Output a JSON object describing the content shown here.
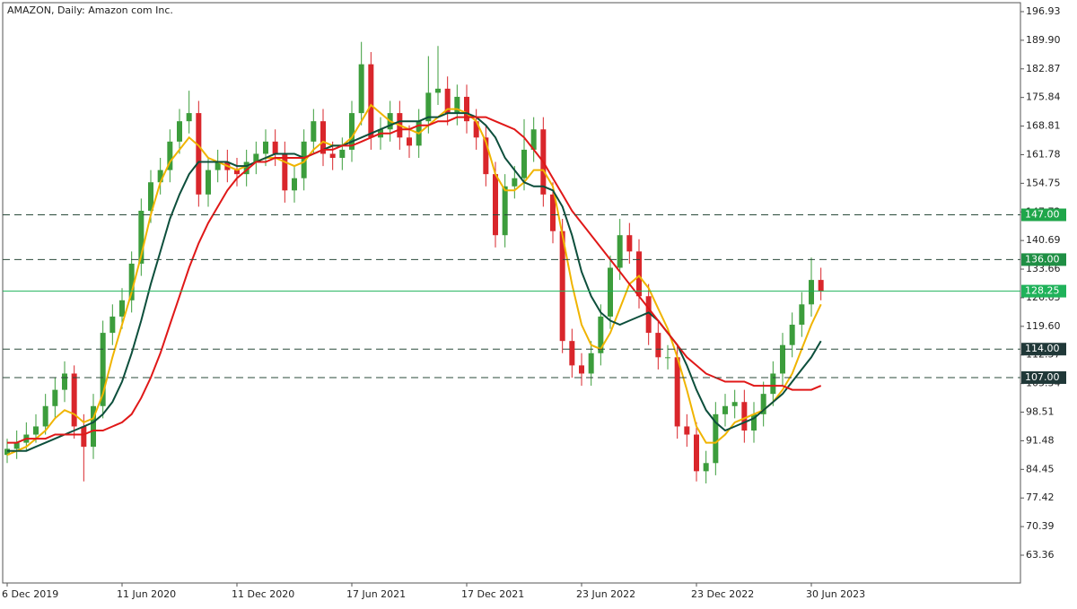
{
  "chart_data": {
    "type": "candlestick",
    "title": "AMAZON, Daily:  Amazon com Inc.",
    "categories": [
      "6 Dec 2019",
      null,
      null,
      null,
      null,
      null,
      null,
      null,
      null,
      null,
      null,
      null,
      "11 Jun 2020",
      null,
      null,
      null,
      null,
      null,
      null,
      null,
      null,
      null,
      null,
      null,
      "11 Dec 2020",
      null,
      null,
      null,
      null,
      null,
      null,
      null,
      null,
      null,
      null,
      null,
      "17 Jun 2021",
      null,
      null,
      null,
      null,
      null,
      null,
      null,
      null,
      null,
      null,
      null,
      "17 Dec 2021",
      null,
      null,
      null,
      null,
      null,
      null,
      null,
      null,
      null,
      null,
      null,
      "23 Jun 2022",
      null,
      null,
      null,
      null,
      null,
      null,
      null,
      null,
      null,
      null,
      null,
      "23 Dec 2022",
      null,
      null,
      null,
      null,
      null,
      null,
      null,
      null,
      null,
      null,
      null,
      "30 Jun 2023",
      null
    ],
    "open": [
      88,
      89.5,
      91,
      93,
      95,
      100,
      104,
      108,
      95,
      90,
      100,
      118,
      122,
      126,
      135,
      148,
      155,
      158,
      165,
      170,
      172,
      152,
      158,
      160,
      158,
      157,
      160,
      162,
      165,
      162,
      153,
      156,
      165,
      170,
      162,
      161,
      163,
      172,
      184,
      166,
      168,
      172,
      166,
      164,
      170,
      177,
      178,
      172,
      176,
      170,
      166,
      157,
      142,
      154,
      156,
      163,
      168,
      152,
      143,
      116,
      110,
      108,
      113,
      122,
      134,
      142,
      138,
      127,
      118,
      112,
      112,
      95,
      93,
      84,
      86,
      98,
      100,
      101,
      94,
      98,
      103,
      108,
      115,
      120,
      125,
      131
    ],
    "high": [
      92,
      94,
      96,
      98,
      103,
      107,
      111,
      110,
      98,
      103,
      121,
      125,
      129,
      138,
      151,
      158,
      161,
      168,
      173,
      177.5,
      175,
      161,
      163,
      163,
      161,
      163,
      165,
      168,
      168,
      165,
      159,
      168,
      173,
      173,
      165,
      166,
      175,
      189.5,
      187,
      171,
      175,
      175,
      169,
      173,
      186,
      188.5,
      181,
      179,
      179,
      173,
      169,
      160,
      157,
      159,
      170.5,
      171,
      171,
      155,
      146,
      119,
      113,
      116,
      125,
      137,
      146,
      145,
      141,
      130,
      121,
      115,
      115,
      98,
      96,
      89,
      101,
      103,
      104,
      104,
      101,
      106,
      111,
      118,
      123,
      128,
      136.5,
      134
    ],
    "low": [
      86,
      87,
      89,
      91,
      93,
      97,
      101,
      92,
      81.5,
      87,
      97,
      115,
      119,
      123,
      132,
      145,
      152,
      155,
      162,
      167,
      149,
      149,
      155,
      155,
      154,
      154,
      157,
      159,
      159,
      150,
      150,
      153,
      162,
      159,
      158,
      158,
      160,
      169,
      163,
      163,
      165,
      163,
      161,
      161,
      167,
      174,
      169,
      169,
      167,
      163,
      154,
      139,
      139,
      151,
      153,
      160,
      149,
      140,
      113,
      107,
      105,
      105,
      110,
      119,
      131,
      135,
      124,
      115,
      109,
      109,
      92,
      90,
      81.5,
      81,
      83,
      95,
      97,
      91,
      91,
      95,
      100,
      105,
      112,
      117,
      122,
      126
    ],
    "close": [
      89.5,
      91,
      93,
      95,
      100,
      104,
      108,
      95,
      90,
      100,
      118,
      122,
      126,
      135,
      148,
      155,
      158,
      165,
      170,
      172,
      152,
      158,
      160,
      158,
      157,
      160,
      162,
      165,
      162,
      153,
      156,
      165,
      170,
      162,
      161,
      163,
      172,
      184,
      166,
      168,
      172,
      166,
      164,
      170,
      177,
      178,
      172,
      176,
      170,
      166,
      157,
      142,
      154,
      156,
      163,
      168,
      152,
      143,
      116,
      110,
      108,
      113,
      122,
      134,
      142,
      138,
      127,
      118,
      112,
      112,
      95,
      93,
      84,
      86,
      98,
      100,
      101,
      94,
      98,
      103,
      108,
      115,
      120,
      125,
      131,
      128.25
    ],
    "up_color": "#3c9d3c",
    "down_color": "#d9262b",
    "series": [
      {
        "color": "#f0b400",
        "values": [
          88,
          89,
          90,
          92,
          94,
          97,
          99,
          98,
          96,
          97,
          103,
          112,
          120,
          128,
          137,
          147,
          155,
          160,
          163,
          166,
          164,
          161,
          160,
          159,
          158,
          159,
          160,
          161,
          161,
          160,
          159,
          160,
          163,
          165,
          164,
          164,
          166,
          170,
          174,
          172,
          170,
          169,
          168,
          167,
          169,
          171,
          173,
          173,
          172,
          170,
          165,
          157,
          153,
          153,
          155,
          158,
          158,
          154,
          142,
          130,
          120,
          115,
          114,
          118,
          124,
          130,
          132,
          129,
          124,
          119,
          112,
          104,
          95,
          91,
          91,
          93,
          96,
          97,
          98,
          99,
          101,
          104,
          108,
          114,
          120,
          125
        ]
      },
      {
        "color": "#0d4f3c",
        "values": [
          89,
          89,
          89,
          90,
          91,
          92,
          93,
          94,
          95,
          96,
          98,
          101,
          106,
          113,
          121,
          130,
          138,
          146,
          152,
          157,
          160,
          160,
          160,
          160,
          159,
          159,
          160,
          161,
          162,
          162,
          162,
          161,
          162,
          163,
          164,
          164,
          165,
          166,
          167,
          168,
          169,
          170,
          170,
          170,
          171,
          171,
          172,
          172,
          172,
          171,
          169,
          166,
          161,
          158,
          155,
          154,
          154,
          153,
          149,
          142,
          133,
          127,
          123,
          121,
          120,
          121,
          122,
          123,
          121,
          118,
          115,
          110,
          104,
          99,
          96,
          94,
          95,
          96,
          97,
          99,
          101,
          103,
          106,
          109,
          112,
          116
        ]
      },
      {
        "color": "#e01818",
        "values": [
          91,
          91,
          92,
          92,
          92,
          93,
          93,
          93,
          93,
          94,
          94,
          95,
          96,
          98,
          102,
          107,
          113,
          120,
          127,
          134,
          140,
          145,
          149,
          153,
          156,
          158,
          160,
          160,
          161,
          161,
          161,
          161,
          162,
          163,
          163,
          164,
          164,
          165,
          166,
          167,
          167,
          168,
          168,
          169,
          169,
          170,
          170,
          171,
          171,
          171,
          171,
          170,
          169,
          168,
          166,
          163,
          160,
          156,
          152,
          148,
          145,
          142,
          139,
          136,
          133,
          130,
          127,
          124,
          121,
          118,
          115,
          112,
          110,
          108,
          107,
          106,
          106,
          106,
          105,
          105,
          105,
          105,
          104,
          104,
          104,
          105
        ]
      }
    ],
    "ylim": [
      56.53,
      199.13
    ],
    "yticks": [
      63.36,
      70.39,
      77.42,
      84.45,
      91.48,
      98.51,
      105.54,
      112.57,
      {
        "value": 119.6,
        "label": "119.60"
      },
      126.63,
      133.66,
      140.69,
      147.72,
      154.75,
      161.78,
      168.81,
      175.84,
      182.87,
      {
        "value": 189.9,
        "label": "189.90"
      },
      196.93
    ],
    "levels": [
      {
        "value": 147,
        "label": "147.00"
      },
      {
        "value": 136,
        "label": "136.00"
      },
      {
        "value": 114,
        "label": "114.00"
      },
      {
        "value": 107,
        "label": "107.00"
      }
    ],
    "level_colors": [
      "#1fa64a",
      "#1f8f44",
      "#203838",
      "#203838"
    ],
    "current_price": {
      "value": 128.25,
      "label": "128.25"
    },
    "current_color": "#1fb25a"
  }
}
